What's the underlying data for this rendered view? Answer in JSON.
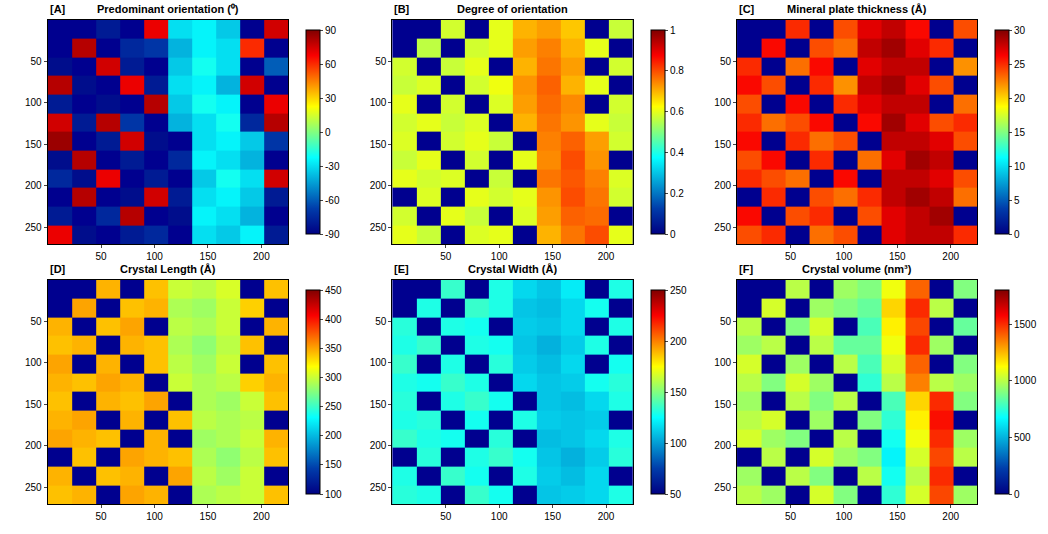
{
  "chart_data": [
    {
      "type": "heatmap",
      "panel": "[A]",
      "title": "Predominant orientation (⁰)",
      "color": "Jet",
      "x": [
        11,
        34,
        56,
        79,
        101,
        124,
        146,
        169,
        191,
        214
      ],
      "y": [
        11,
        34,
        56,
        79,
        101,
        124,
        146,
        169,
        191,
        214,
        236,
        259
      ],
      "xlim": [
        0,
        225
      ],
      "ylim": [
        270,
        0
      ],
      "xticks": [
        50,
        100,
        150,
        200
      ],
      "yticks": [
        50,
        100,
        150,
        200,
        250
      ],
      "colorbar": {
        "range": [
          -90,
          90
        ],
        "ticks": [
          -90,
          -60,
          -30,
          0,
          30,
          60,
          90
        ]
      },
      "z": [
        [
          null,
          null,
          -80,
          null,
          70,
          -30,
          -25,
          -35,
          null,
          75
        ],
        [
          null,
          80,
          null,
          -75,
          -70,
          -40,
          -25,
          -30,
          60,
          null
        ],
        [
          -85,
          null,
          75,
          -80,
          null,
          -35,
          -20,
          -30,
          null,
          -60
        ],
        [
          80,
          -85,
          null,
          70,
          -80,
          -30,
          -25,
          -40,
          75,
          null
        ],
        [
          -80,
          null,
          -85,
          null,
          80,
          -35,
          -20,
          -25,
          null,
          70
        ],
        [
          75,
          -80,
          80,
          -70,
          null,
          -40,
          -30,
          -20,
          -75,
          80
        ],
        [
          85,
          null,
          -80,
          75,
          -85,
          null,
          -30,
          -25,
          -35,
          -70
        ],
        [
          -85,
          80,
          null,
          -80,
          null,
          -75,
          -25,
          -30,
          -40,
          null
        ],
        [
          -75,
          -85,
          70,
          null,
          -80,
          null,
          -35,
          -20,
          -30,
          75
        ],
        [
          null,
          80,
          null,
          -85,
          75,
          -80,
          -30,
          -25,
          -35,
          -80
        ],
        [
          -80,
          null,
          -75,
          80,
          null,
          -85,
          -25,
          -30,
          -40,
          null
        ],
        [
          70,
          -85,
          null,
          -80,
          -75,
          null,
          -30,
          -35,
          -25,
          -80
        ]
      ]
    },
    {
      "type": "heatmap",
      "panel": "[B]",
      "title": "Degree of orientation",
      "color": "Jet",
      "x": [
        11,
        34,
        56,
        79,
        101,
        124,
        146,
        169,
        191,
        214
      ],
      "y": [
        11,
        34,
        56,
        79,
        101,
        124,
        146,
        169,
        191,
        214,
        236,
        259
      ],
      "xlim": [
        0,
        225
      ],
      "ylim": [
        270,
        0
      ],
      "xticks": [
        50,
        100,
        150,
        200
      ],
      "yticks": [
        50,
        100,
        150,
        200,
        250
      ],
      "colorbar": {
        "range": [
          0,
          1
        ],
        "ticks": [
          0,
          0.2,
          0.4,
          0.6,
          0.8,
          1
        ]
      },
      "z": [
        [
          null,
          null,
          0.58,
          null,
          0.6,
          0.7,
          0.72,
          0.68,
          null,
          0.57
        ],
        [
          null,
          0.56,
          null,
          0.58,
          0.6,
          0.72,
          0.75,
          0.7,
          0.6,
          null
        ],
        [
          0.58,
          null,
          0.57,
          0.6,
          null,
          0.7,
          0.76,
          0.72,
          null,
          0.58
        ],
        [
          0.57,
          0.59,
          null,
          0.58,
          0.61,
          0.73,
          0.78,
          0.7,
          0.6,
          null
        ],
        [
          0.6,
          null,
          0.58,
          null,
          0.59,
          0.72,
          0.77,
          0.74,
          null,
          0.58
        ],
        [
          0.58,
          0.6,
          0.57,
          0.59,
          null,
          0.7,
          0.76,
          0.73,
          0.6,
          0.57
        ],
        [
          0.59,
          null,
          0.58,
          0.6,
          0.57,
          null,
          0.75,
          0.78,
          0.72,
          0.58
        ],
        [
          0.57,
          0.6,
          null,
          0.58,
          null,
          0.6,
          0.74,
          0.8,
          0.73,
          null
        ],
        [
          0.6,
          0.58,
          0.59,
          null,
          0.57,
          null,
          0.76,
          0.79,
          0.75,
          0.59
        ],
        [
          null,
          0.59,
          null,
          0.6,
          0.58,
          0.6,
          0.73,
          0.8,
          0.76,
          0.58
        ],
        [
          0.58,
          null,
          0.6,
          0.57,
          null,
          0.59,
          0.72,
          0.78,
          0.77,
          null
        ],
        [
          0.6,
          0.57,
          null,
          0.59,
          0.6,
          null,
          0.7,
          0.76,
          0.8,
          0.6
        ]
      ]
    },
    {
      "type": "heatmap",
      "panel": "[C]",
      "title": "Mineral plate thickness (Å)",
      "color": "Jet",
      "x": [
        11,
        34,
        56,
        79,
        101,
        124,
        146,
        169,
        191,
        214
      ],
      "y": [
        11,
        34,
        56,
        79,
        101,
        124,
        146,
        169,
        191,
        214,
        236,
        259
      ],
      "xlim": [
        0,
        225
      ],
      "ylim": [
        270,
        0
      ],
      "xticks": [
        50,
        100,
        150,
        200
      ],
      "yticks": [
        50,
        100,
        150,
        200,
        250
      ],
      "colorbar": {
        "range": [
          0,
          30
        ],
        "ticks": [
          0,
          5,
          10,
          15,
          20,
          25,
          30
        ]
      },
      "z": [
        [
          null,
          null,
          25,
          null,
          24,
          27,
          28,
          26,
          null,
          24
        ],
        [
          null,
          26,
          null,
          24,
          23,
          28,
          29,
          27,
          25,
          null
        ],
        [
          25,
          null,
          23,
          26,
          null,
          27,
          28,
          28,
          null,
          22
        ],
        [
          26,
          24,
          null,
          25,
          22,
          28,
          29,
          27,
          24,
          null
        ],
        [
          24,
          null,
          26,
          null,
          25,
          27,
          28,
          28,
          null,
          23
        ],
        [
          25,
          23,
          24,
          26,
          null,
          26,
          29,
          27,
          24,
          25
        ],
        [
          26,
          null,
          25,
          23,
          24,
          null,
          28,
          28,
          27,
          24
        ],
        [
          24,
          26,
          null,
          25,
          null,
          23,
          27,
          29,
          28,
          null
        ],
        [
          25,
          24,
          23,
          null,
          26,
          null,
          28,
          28,
          27,
          24
        ],
        [
          null,
          25,
          null,
          24,
          23,
          25,
          28,
          29,
          28,
          23
        ],
        [
          26,
          null,
          24,
          25,
          null,
          24,
          27,
          28,
          29,
          null
        ],
        [
          24,
          25,
          null,
          23,
          24,
          null,
          27,
          28,
          28,
          25
        ]
      ]
    },
    {
      "type": "heatmap",
      "panel": "[D]",
      "title": "Crystal Length (Å)",
      "color": "Jet",
      "x": [
        11,
        34,
        56,
        79,
        101,
        124,
        146,
        169,
        191,
        214
      ],
      "y": [
        11,
        34,
        56,
        79,
        101,
        124,
        146,
        169,
        191,
        214,
        236,
        259
      ],
      "xlim": [
        0,
        225
      ],
      "ylim": [
        270,
        0
      ],
      "xticks": [
        50,
        100,
        150,
        200
      ],
      "yticks": [
        50,
        100,
        150,
        200,
        250
      ],
      "colorbar": {
        "range": [
          100,
          450
        ],
        "ticks": [
          100,
          150,
          200,
          250,
          300,
          350,
          400,
          450
        ]
      },
      "z": [
        [
          null,
          null,
          345,
          null,
          340,
          300,
          295,
          305,
          null,
          340
        ],
        [
          null,
          350,
          null,
          340,
          345,
          290,
          285,
          300,
          335,
          null
        ],
        [
          345,
          null,
          340,
          350,
          null,
          295,
          290,
          300,
          null,
          345
        ],
        [
          340,
          345,
          null,
          345,
          340,
          290,
          280,
          295,
          340,
          null
        ],
        [
          350,
          null,
          345,
          null,
          340,
          295,
          285,
          300,
          null,
          340
        ],
        [
          345,
          340,
          350,
          345,
          null,
          300,
          290,
          295,
          335,
          345
        ],
        [
          340,
          null,
          345,
          340,
          350,
          null,
          290,
          285,
          300,
          340
        ],
        [
          345,
          350,
          null,
          345,
          null,
          340,
          295,
          290,
          295,
          null
        ],
        [
          350,
          345,
          340,
          null,
          345,
          null,
          285,
          290,
          300,
          345
        ],
        [
          null,
          340,
          null,
          350,
          345,
          340,
          290,
          280,
          295,
          340
        ],
        [
          345,
          null,
          340,
          345,
          null,
          350,
          295,
          285,
          300,
          null
        ],
        [
          340,
          345,
          null,
          350,
          345,
          null,
          290,
          295,
          300,
          340
        ]
      ]
    },
    {
      "type": "heatmap",
      "panel": "[E]",
      "title": "Crystal Width (Å)",
      "color": "Jet",
      "x": [
        11,
        34,
        56,
        79,
        101,
        124,
        146,
        169,
        191,
        214
      ],
      "y": [
        11,
        34,
        56,
        79,
        101,
        124,
        146,
        169,
        191,
        214,
        236,
        259
      ],
      "xlim": [
        0,
        225
      ],
      "ylim": [
        270,
        0
      ],
      "xticks": [
        50,
        100,
        150,
        200
      ],
      "yticks": [
        50,
        100,
        150,
        200,
        250
      ],
      "colorbar": {
        "range": [
          50,
          250
        ],
        "ticks": [
          50,
          100,
          150,
          200,
          250
        ]
      },
      "z": [
        [
          null,
          null,
          135,
          null,
          130,
          115,
          110,
          120,
          null,
          130
        ],
        [
          null,
          130,
          null,
          135,
          130,
          110,
          108,
          115,
          128,
          null
        ],
        [
          132,
          null,
          130,
          128,
          null,
          112,
          110,
          115,
          null,
          130
        ],
        [
          130,
          135,
          null,
          130,
          128,
          110,
          105,
          112,
          130,
          null
        ],
        [
          135,
          null,
          130,
          null,
          132,
          112,
          108,
          115,
          null,
          128
        ],
        [
          130,
          128,
          135,
          130,
          null,
          115,
          110,
          112,
          128,
          132
        ],
        [
          132,
          null,
          130,
          135,
          128,
          null,
          110,
          108,
          115,
          130
        ],
        [
          130,
          132,
          null,
          128,
          null,
          130,
          112,
          110,
          112,
          null
        ],
        [
          135,
          130,
          128,
          null,
          132,
          null,
          108,
          110,
          115,
          130
        ],
        [
          null,
          132,
          null,
          130,
          135,
          128,
          110,
          105,
          112,
          132
        ],
        [
          130,
          null,
          135,
          128,
          null,
          130,
          112,
          108,
          115,
          null
        ],
        [
          132,
          130,
          null,
          135,
          128,
          null,
          110,
          112,
          115,
          130
        ]
      ]
    },
    {
      "type": "heatmap",
      "panel": "[F]",
      "title": "Crystal volume (nm³)",
      "color": "Jet",
      "x": [
        11,
        34,
        56,
        79,
        101,
        124,
        146,
        169,
        191,
        214
      ],
      "y": [
        11,
        34,
        56,
        79,
        101,
        124,
        146,
        169,
        191,
        214,
        236,
        259
      ],
      "xlim": [
        0,
        225
      ],
      "ylim": [
        270,
        0
      ],
      "xticks": [
        50,
        100,
        150,
        200
      ],
      "yticks": [
        50,
        100,
        150,
        200,
        250
      ],
      "colorbar": {
        "range": [
          0,
          1800
        ],
        "ticks": [
          0,
          500,
          1000,
          1500
        ]
      },
      "z": [
        [
          null,
          null,
          1000,
          null,
          950,
          900,
          1100,
          1400,
          null,
          900
        ],
        [
          null,
          1050,
          null,
          950,
          900,
          850,
          1200,
          1500,
          1000,
          null
        ],
        [
          1000,
          null,
          900,
          1050,
          null,
          800,
          1150,
          1450,
          null,
          850
        ],
        [
          950,
          1000,
          null,
          1000,
          850,
          850,
          1100,
          1500,
          950,
          null
        ],
        [
          1050,
          null,
          950,
          null,
          1000,
          800,
          1050,
          1400,
          null,
          900
        ],
        [
          1000,
          900,
          1050,
          950,
          null,
          750,
          1000,
          1350,
          1000,
          950
        ],
        [
          950,
          null,
          1000,
          900,
          1000,
          null,
          800,
          1200,
          1500,
          900
        ],
        [
          1000,
          1050,
          null,
          950,
          null,
          900,
          750,
          1150,
          1550,
          null
        ],
        [
          1050,
          950,
          900,
          null,
          1000,
          null,
          700,
          1100,
          1500,
          950
        ],
        [
          null,
          1000,
          null,
          1050,
          950,
          900,
          650,
          1050,
          1450,
          1000
        ],
        [
          950,
          null,
          1000,
          900,
          null,
          1000,
          700,
          1000,
          1500,
          null
        ],
        [
          1000,
          950,
          null,
          1050,
          900,
          null,
          750,
          1050,
          1450,
          950
        ]
      ]
    }
  ]
}
